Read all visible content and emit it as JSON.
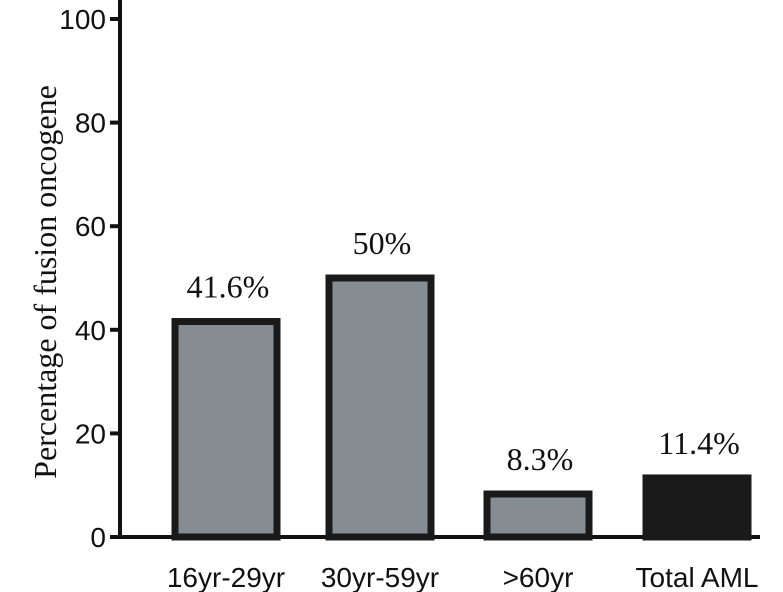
{
  "chart_data": {
    "type": "bar",
    "title": "",
    "ylabel": "Percentage of fusion oncogene",
    "xlabel": "",
    "ylim": [
      0,
      100
    ],
    "yticks": [
      "0",
      "20",
      "40",
      "60",
      "80",
      "100"
    ],
    "categories": [
      "16yr-29yr",
      "30yr-59yr",
      ">60yr",
      "Total AML"
    ],
    "values": [
      41.6,
      50,
      8.3,
      11.4
    ],
    "data_labels": [
      "41.6%",
      "50%",
      "8.3%",
      "11.4%"
    ],
    "bar_colors": [
      "#858c92",
      "#858c92",
      "#858c92",
      "#1a1a1a"
    ],
    "outline_color": "#1a1a1a",
    "grid": false,
    "legend": "none"
  }
}
